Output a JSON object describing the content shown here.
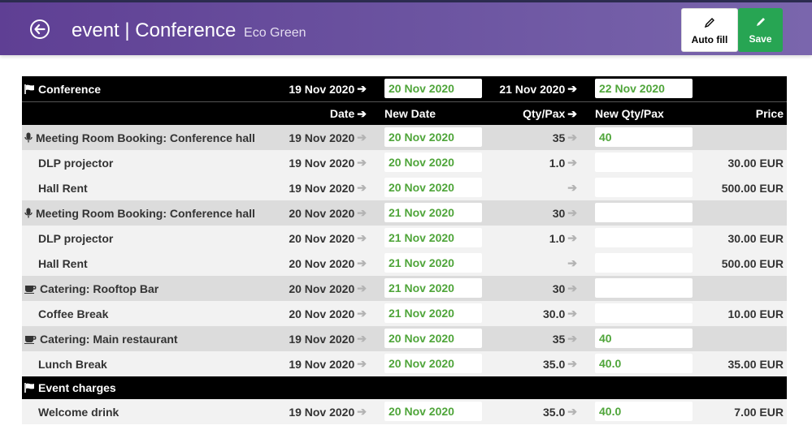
{
  "header": {
    "title": "event | Conference",
    "subtitle": "Eco Green",
    "autofill_label": "Auto fill",
    "save_label": "Save"
  },
  "conference_header": {
    "label": "Conference",
    "date_from": "19 Nov 2020",
    "date_to": "20 Nov 2020",
    "date2_from": "21 Nov 2020",
    "date2_to": "22 Nov 2020"
  },
  "columns": {
    "date": "Date",
    "new_date": "New Date",
    "qty": "Qty/Pax",
    "new_qty": "New Qty/Pax",
    "price": "Price"
  },
  "rows": [
    {
      "type": "group",
      "icon": "microphone-icon",
      "name": "Meeting Room Booking: Conference hall",
      "date": "19 Nov 2020",
      "new_date": "20 Nov 2020",
      "qty": "35",
      "new_qty": "40",
      "price": ""
    },
    {
      "type": "item",
      "name": "DLP projector",
      "date": "19 Nov 2020",
      "new_date": "20 Nov 2020",
      "qty": "1.0",
      "new_qty": "",
      "price": "30.00 EUR"
    },
    {
      "type": "item",
      "name": "Hall Rent",
      "date": "19 Nov 2020",
      "new_date": "20 Nov 2020",
      "qty": "",
      "new_qty": "",
      "price": "500.00 EUR"
    },
    {
      "type": "group",
      "icon": "microphone-icon",
      "name": "Meeting Room Booking: Conference hall",
      "date": "20 Nov 2020",
      "new_date": "21 Nov 2020",
      "qty": "30",
      "new_qty": "",
      "price": ""
    },
    {
      "type": "item",
      "name": "DLP projector",
      "date": "20 Nov 2020",
      "new_date": "21 Nov 2020",
      "qty": "1.0",
      "new_qty": "",
      "price": "30.00 EUR"
    },
    {
      "type": "item",
      "name": "Hall Rent",
      "date": "20 Nov 2020",
      "new_date": "21 Nov 2020",
      "qty": "",
      "new_qty": "",
      "price": "500.00 EUR"
    },
    {
      "type": "group",
      "icon": "coffee-cup-icon",
      "name": "Catering: Rooftop Bar",
      "date": "20 Nov 2020",
      "new_date": "21 Nov 2020",
      "qty": "30",
      "new_qty": "",
      "price": ""
    },
    {
      "type": "item",
      "name": "Coffee Break",
      "date": "20 Nov 2020",
      "new_date": "21 Nov 2020",
      "qty": "30.0",
      "new_qty": "",
      "price": "10.00 EUR"
    },
    {
      "type": "group",
      "icon": "coffee-cup-icon",
      "name": "Catering: Main restaurant",
      "date": "19 Nov 2020",
      "new_date": "20 Nov 2020",
      "qty": "35",
      "new_qty": "40",
      "price": ""
    },
    {
      "type": "item",
      "name": "Lunch Break",
      "date": "19 Nov 2020",
      "new_date": "20 Nov 2020",
      "qty": "35.0",
      "new_qty": "40.0",
      "price": "35.00 EUR"
    }
  ],
  "event_charges": {
    "label": "Event charges",
    "rows": [
      {
        "type": "item",
        "name": "Welcome drink",
        "date": "19 Nov 2020",
        "new_date": "20 Nov 2020",
        "qty": "35.0",
        "new_qty": "40.0",
        "price": "7.00 EUR"
      }
    ]
  },
  "colors": {
    "header_purple": "#6b53a0",
    "save_green": "#27a553",
    "new_value_green": "#4fa53a"
  }
}
